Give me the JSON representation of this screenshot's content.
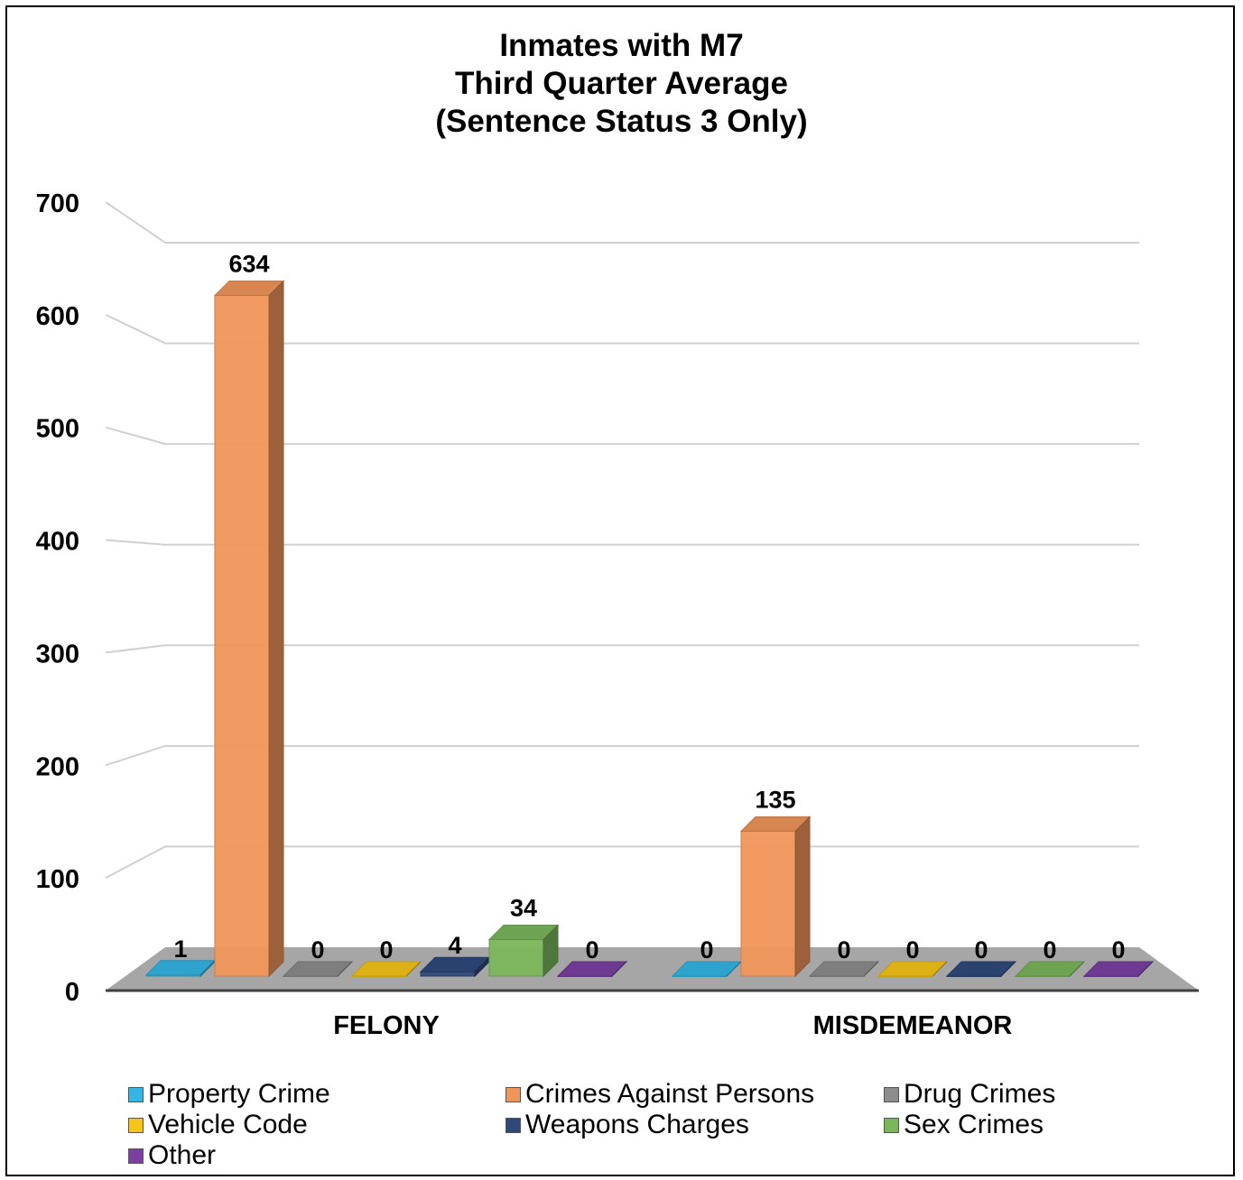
{
  "chart_data": {
    "type": "bar",
    "title_lines": [
      "Inmates with M7",
      "Third Quarter Average",
      "(Sentence Status 3 Only)"
    ],
    "categories": [
      "FELONY",
      "MISDEMEANOR"
    ],
    "ylim": [
      0,
      700
    ],
    "yticks": [
      0,
      100,
      200,
      300,
      400,
      500,
      600,
      700
    ],
    "grid": true,
    "legend_position": "bottom",
    "series": [
      {
        "name": "Property Crime",
        "color": "#33b5e5",
        "values": [
          1,
          0
        ]
      },
      {
        "name": "Crimes Against Persons",
        "color": "#f0955a",
        "values": [
          634,
          135
        ]
      },
      {
        "name": "Drug Crimes",
        "color": "#8c8c8c",
        "values": [
          0,
          0
        ]
      },
      {
        "name": "Vehicle Code",
        "color": "#f5c518",
        "values": [
          0,
          0
        ]
      },
      {
        "name": "Weapons Charges",
        "color": "#2e4a7a",
        "values": [
          4,
          0
        ]
      },
      {
        "name": "Sex Crimes",
        "color": "#7ab65a",
        "values": [
          34,
          0
        ]
      },
      {
        "name": "Other",
        "color": "#7a3fa0",
        "values": [
          0,
          0
        ]
      }
    ]
  }
}
